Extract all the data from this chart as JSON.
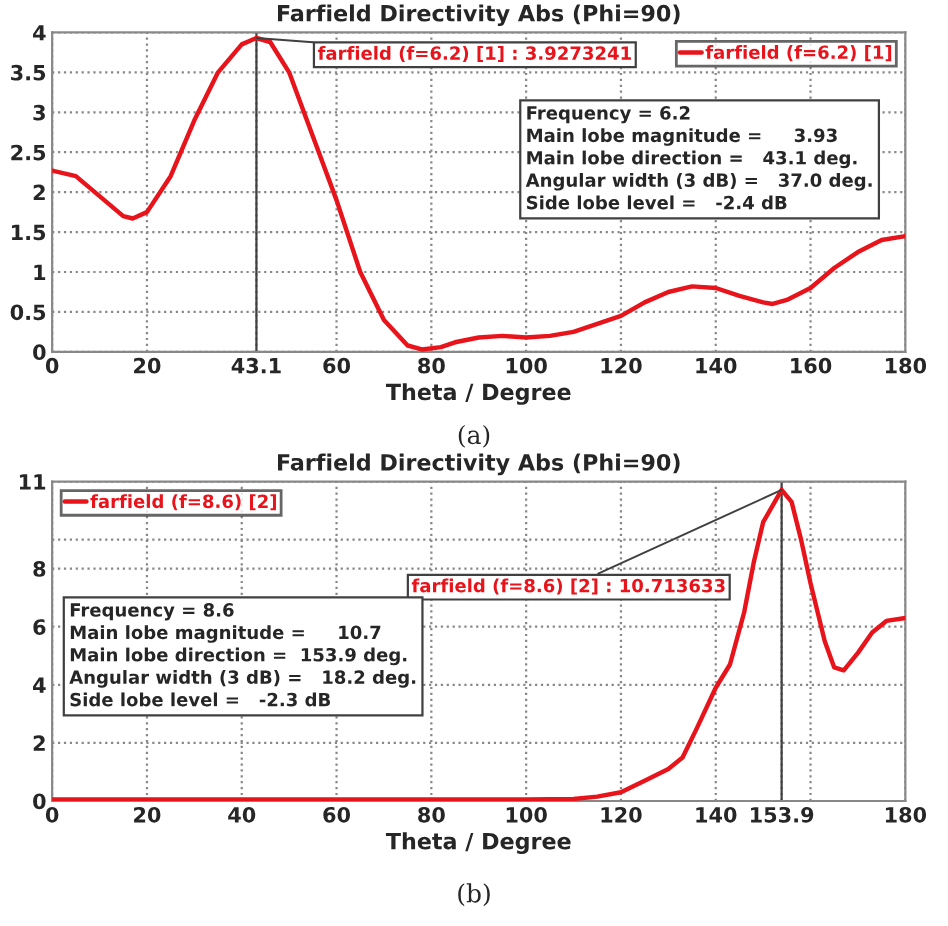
{
  "chart_data": [
    {
      "type": "line",
      "title": "Farfield Directivity Abs (Phi=90)",
      "xlabel": "Theta / Degree",
      "x": [
        0,
        5,
        10,
        15,
        17,
        20,
        25,
        30,
        35,
        40,
        43.1,
        46,
        50,
        55,
        60,
        65,
        70,
        75,
        78,
        82,
        85,
        90,
        95,
        100,
        105,
        110,
        115,
        120,
        125,
        130,
        135,
        140,
        145,
        150,
        152,
        155,
        160,
        165,
        170,
        175,
        180
      ],
      "series": [
        {
          "name": "farfield (f=6.2) [1]",
          "color": "#e8141b",
          "values": [
            2.27,
            2.2,
            1.95,
            1.7,
            1.67,
            1.75,
            2.2,
            2.9,
            3.5,
            3.85,
            3.93,
            3.88,
            3.5,
            2.7,
            1.9,
            1.0,
            0.4,
            0.08,
            0.03,
            0.06,
            0.12,
            0.18,
            0.2,
            0.18,
            0.2,
            0.25,
            0.35,
            0.45,
            0.62,
            0.75,
            0.82,
            0.8,
            0.7,
            0.62,
            0.6,
            0.65,
            0.8,
            1.05,
            1.25,
            1.4,
            1.45
          ]
        }
      ],
      "xlim": [
        0,
        180
      ],
      "xticks": [
        0,
        20,
        43.1,
        60,
        80,
        100,
        120,
        140,
        160,
        180
      ],
      "ylim": [
        0,
        4
      ],
      "yticks": [
        0,
        0.5,
        1,
        1.5,
        2,
        2.5,
        3,
        3.5,
        4
      ],
      "ref_lines": [
        {
          "axis": "x",
          "value": 43.1,
          "label": null,
          "color": "#404040"
        }
      ],
      "annotations": [
        {
          "text": "farfield (f=6.2) [1] : 3.9273241",
          "x": 43.1,
          "y": 3.93
        },
        "Frequency = 6.2\nMain lobe magnitude =     3.93\nMain lobe direction =   43.1 deg.\nAngular width (3 dB) =   37.0 deg.\nSide lobe level =   -2.4 dB",
        "(a)"
      ],
      "grid": true,
      "legend": "top right",
      "marker": "none",
      "line_style": "solid"
    },
    {
      "type": "line",
      "title": "Farfield Directivity Abs (Phi=90)",
      "xlabel": "Theta / Degree",
      "x": [
        0,
        20,
        40,
        60,
        80,
        100,
        110,
        115,
        120,
        125,
        130,
        133,
        136,
        140,
        143,
        146,
        148,
        150,
        153.9,
        156,
        158,
        160,
        163,
        165,
        167,
        170,
        173,
        176,
        180
      ],
      "series": [
        {
          "name": "farfield (f=8.6) [2]",
          "color": "#e8141b",
          "values": [
            0.05,
            0.05,
            0.05,
            0.05,
            0.05,
            0.05,
            0.07,
            0.15,
            0.3,
            0.7,
            1.1,
            1.5,
            2.5,
            3.9,
            4.7,
            6.5,
            8.2,
            9.6,
            10.71,
            10.3,
            9,
            7.5,
            5.5,
            4.6,
            4.5,
            5.1,
            5.8,
            6.2,
            6.3
          ]
        }
      ],
      "xlim": [
        0,
        180
      ],
      "xticks": [
        0,
        20,
        40,
        60,
        80,
        100,
        120,
        140,
        153.9,
        {
          "value": 160,
          "label": null
        },
        180
      ],
      "ylim": [
        0,
        11
      ],
      "yticks": [
        0,
        2,
        4,
        6,
        8,
        {
          "value": 9,
          "label": null
        },
        11
      ],
      "ref_lines": [
        {
          "axis": "x",
          "value": 153.9,
          "label": null,
          "color": "#404040"
        }
      ],
      "annotations": [
        {
          "text": "farfield (f=8.6) [2] : 10.713633",
          "x": 153.9,
          "y": 10.71
        },
        "Frequency = 8.6\nMain lobe magnitude =     10.7\nMain lobe direction =  153.9 deg.\nAngular width (3 dB) =   18.2 deg.\nSide lobe level =   -2.3 dB",
        "(b)"
      ],
      "grid": true,
      "legend": "top left",
      "marker": "none",
      "line_style": "solid"
    }
  ]
}
